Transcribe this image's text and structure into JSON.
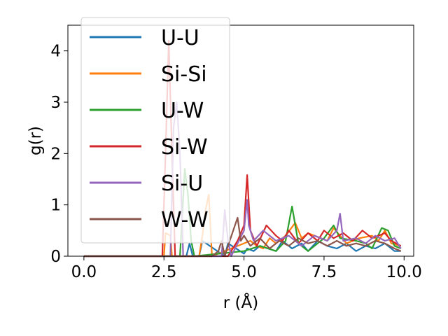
{
  "chart_data": {
    "type": "line",
    "title": "",
    "xlabel": "r (Å)",
    "ylabel": "g(r)",
    "xlim": [
      -0.5,
      10.3
    ],
    "ylim": [
      0,
      4.5
    ],
    "x_ticks": [
      0.0,
      2.5,
      5.0,
      7.5,
      10.0
    ],
    "x_tick_labels": [
      "0.0",
      "2.5",
      "5.0",
      "7.5",
      "10.0"
    ],
    "y_ticks": [
      0,
      1,
      2,
      3,
      4
    ],
    "y_tick_labels": [
      "0",
      "1",
      "2",
      "3",
      "4"
    ],
    "grid": false,
    "legend_position": "top-left",
    "series": [
      {
        "name": "U-U",
        "color": "#1f77b4",
        "x": [
          0.0,
          2.4,
          3.2,
          3.3,
          3.4,
          3.6,
          3.7,
          4.4,
          4.5,
          5.0,
          5.1,
          5.3,
          5.5,
          6.0,
          6.2,
          6.5,
          6.8,
          7.0,
          7.3,
          7.6,
          7.9,
          8.2,
          8.5,
          8.8,
          9.1,
          9.4,
          9.7,
          9.9
        ],
        "y": [
          0.0,
          0.0,
          0.0,
          0.25,
          0.0,
          0.0,
          0.3,
          0.0,
          0.25,
          0.05,
          0.15,
          0.1,
          0.2,
          0.1,
          0.3,
          0.15,
          0.25,
          0.1,
          0.3,
          0.2,
          0.15,
          0.25,
          0.1,
          0.2,
          0.15,
          0.25,
          0.1,
          0.1
        ]
      },
      {
        "name": "Si-Si",
        "color": "#ff7f0e",
        "x": [
          0.0,
          2.5,
          2.55,
          2.7,
          2.75,
          3.6,
          3.7,
          3.8,
          3.9,
          4.0,
          5.2,
          5.4,
          5.6,
          5.8,
          6.0,
          6.3,
          6.6,
          6.8,
          7.0,
          7.4,
          7.6,
          7.8,
          8.2,
          8.6,
          9.0,
          9.2,
          9.4,
          9.6,
          9.9
        ],
        "y": [
          0.0,
          0.0,
          0.45,
          0.4,
          0.0,
          0.0,
          0.4,
          0.9,
          1.2,
          0.0,
          0.3,
          0.2,
          0.15,
          0.35,
          0.25,
          0.4,
          0.65,
          0.35,
          0.45,
          0.35,
          0.3,
          0.55,
          0.25,
          0.35,
          0.4,
          0.3,
          0.5,
          0.25,
          0.2
        ]
      },
      {
        "name": "U-W",
        "color": "#2ca02c",
        "x": [
          0.0,
          3.0,
          3.15,
          3.25,
          3.35,
          3.45,
          5.0,
          5.5,
          6.0,
          6.3,
          6.5,
          6.7,
          7.0,
          7.5,
          7.8,
          8.0,
          8.5,
          8.8,
          9.0,
          9.3,
          9.5,
          9.7,
          9.9
        ],
        "y": [
          0.0,
          0.0,
          1.7,
          1.2,
          0.3,
          0.0,
          0.1,
          0.2,
          0.1,
          0.3,
          0.97,
          0.25,
          0.1,
          0.35,
          0.6,
          0.35,
          0.3,
          0.25,
          0.15,
          0.55,
          0.5,
          0.2,
          0.15
        ]
      },
      {
        "name": "Si-W",
        "color": "#d62728",
        "x": [
          0.0,
          2.45,
          2.55,
          2.65,
          2.75,
          2.85,
          3.5,
          4.5,
          4.8,
          5.0,
          5.1,
          5.2,
          5.4,
          5.7,
          6.0,
          6.2,
          6.4,
          6.7,
          7.0,
          7.3,
          7.5,
          7.8,
          8.1,
          8.4,
          8.7,
          9.0,
          9.2,
          9.4,
          9.6,
          9.9
        ],
        "y": [
          0.0,
          0.0,
          2.0,
          4.2,
          2.0,
          0.0,
          0.0,
          0.0,
          0.3,
          0.6,
          1.58,
          0.5,
          0.2,
          0.6,
          0.4,
          0.3,
          0.5,
          0.25,
          0.45,
          0.3,
          0.5,
          0.35,
          0.45,
          0.3,
          0.5,
          0.35,
          0.4,
          0.45,
          0.3,
          0.2
        ]
      },
      {
        "name": "Si-U",
        "color": "#9467bd",
        "x": [
          0.0,
          2.7,
          2.8,
          2.9,
          3.0,
          3.1,
          4.3,
          4.4,
          4.5,
          4.6,
          5.0,
          5.1,
          5.15,
          5.3,
          5.6,
          6.0,
          6.4,
          6.8,
          7.2,
          7.6,
          7.9,
          8.0,
          8.1,
          8.5,
          8.8,
          9.1,
          9.4,
          9.7,
          9.9
        ],
        "y": [
          0.0,
          0.0,
          2.5,
          3.0,
          2.0,
          0.0,
          0.0,
          0.9,
          0.3,
          0.0,
          0.5,
          1.1,
          0.6,
          0.3,
          0.5,
          0.3,
          0.4,
          0.2,
          0.4,
          0.3,
          0.5,
          0.83,
          0.3,
          0.35,
          0.25,
          0.4,
          0.3,
          0.35,
          0.15
        ]
      },
      {
        "name": "W-W",
        "color": "#8c564b",
        "x": [
          0.0,
          4.0,
          4.2,
          4.3,
          4.4,
          4.5,
          4.8,
          4.9,
          5.0,
          5.2,
          5.5,
          5.8,
          6.1,
          6.4,
          6.7,
          7.0,
          7.3,
          7.6,
          7.9,
          8.2,
          8.5,
          8.8,
          9.1,
          9.4,
          9.7,
          9.9
        ],
        "y": [
          0.0,
          0.0,
          0.1,
          0.3,
          0.0,
          0.2,
          0.75,
          0.3,
          0.4,
          0.2,
          0.35,
          0.15,
          0.3,
          0.2,
          0.35,
          0.25,
          0.3,
          0.2,
          0.3,
          0.2,
          0.25,
          0.2,
          0.3,
          0.25,
          0.15,
          0.1
        ]
      }
    ]
  }
}
